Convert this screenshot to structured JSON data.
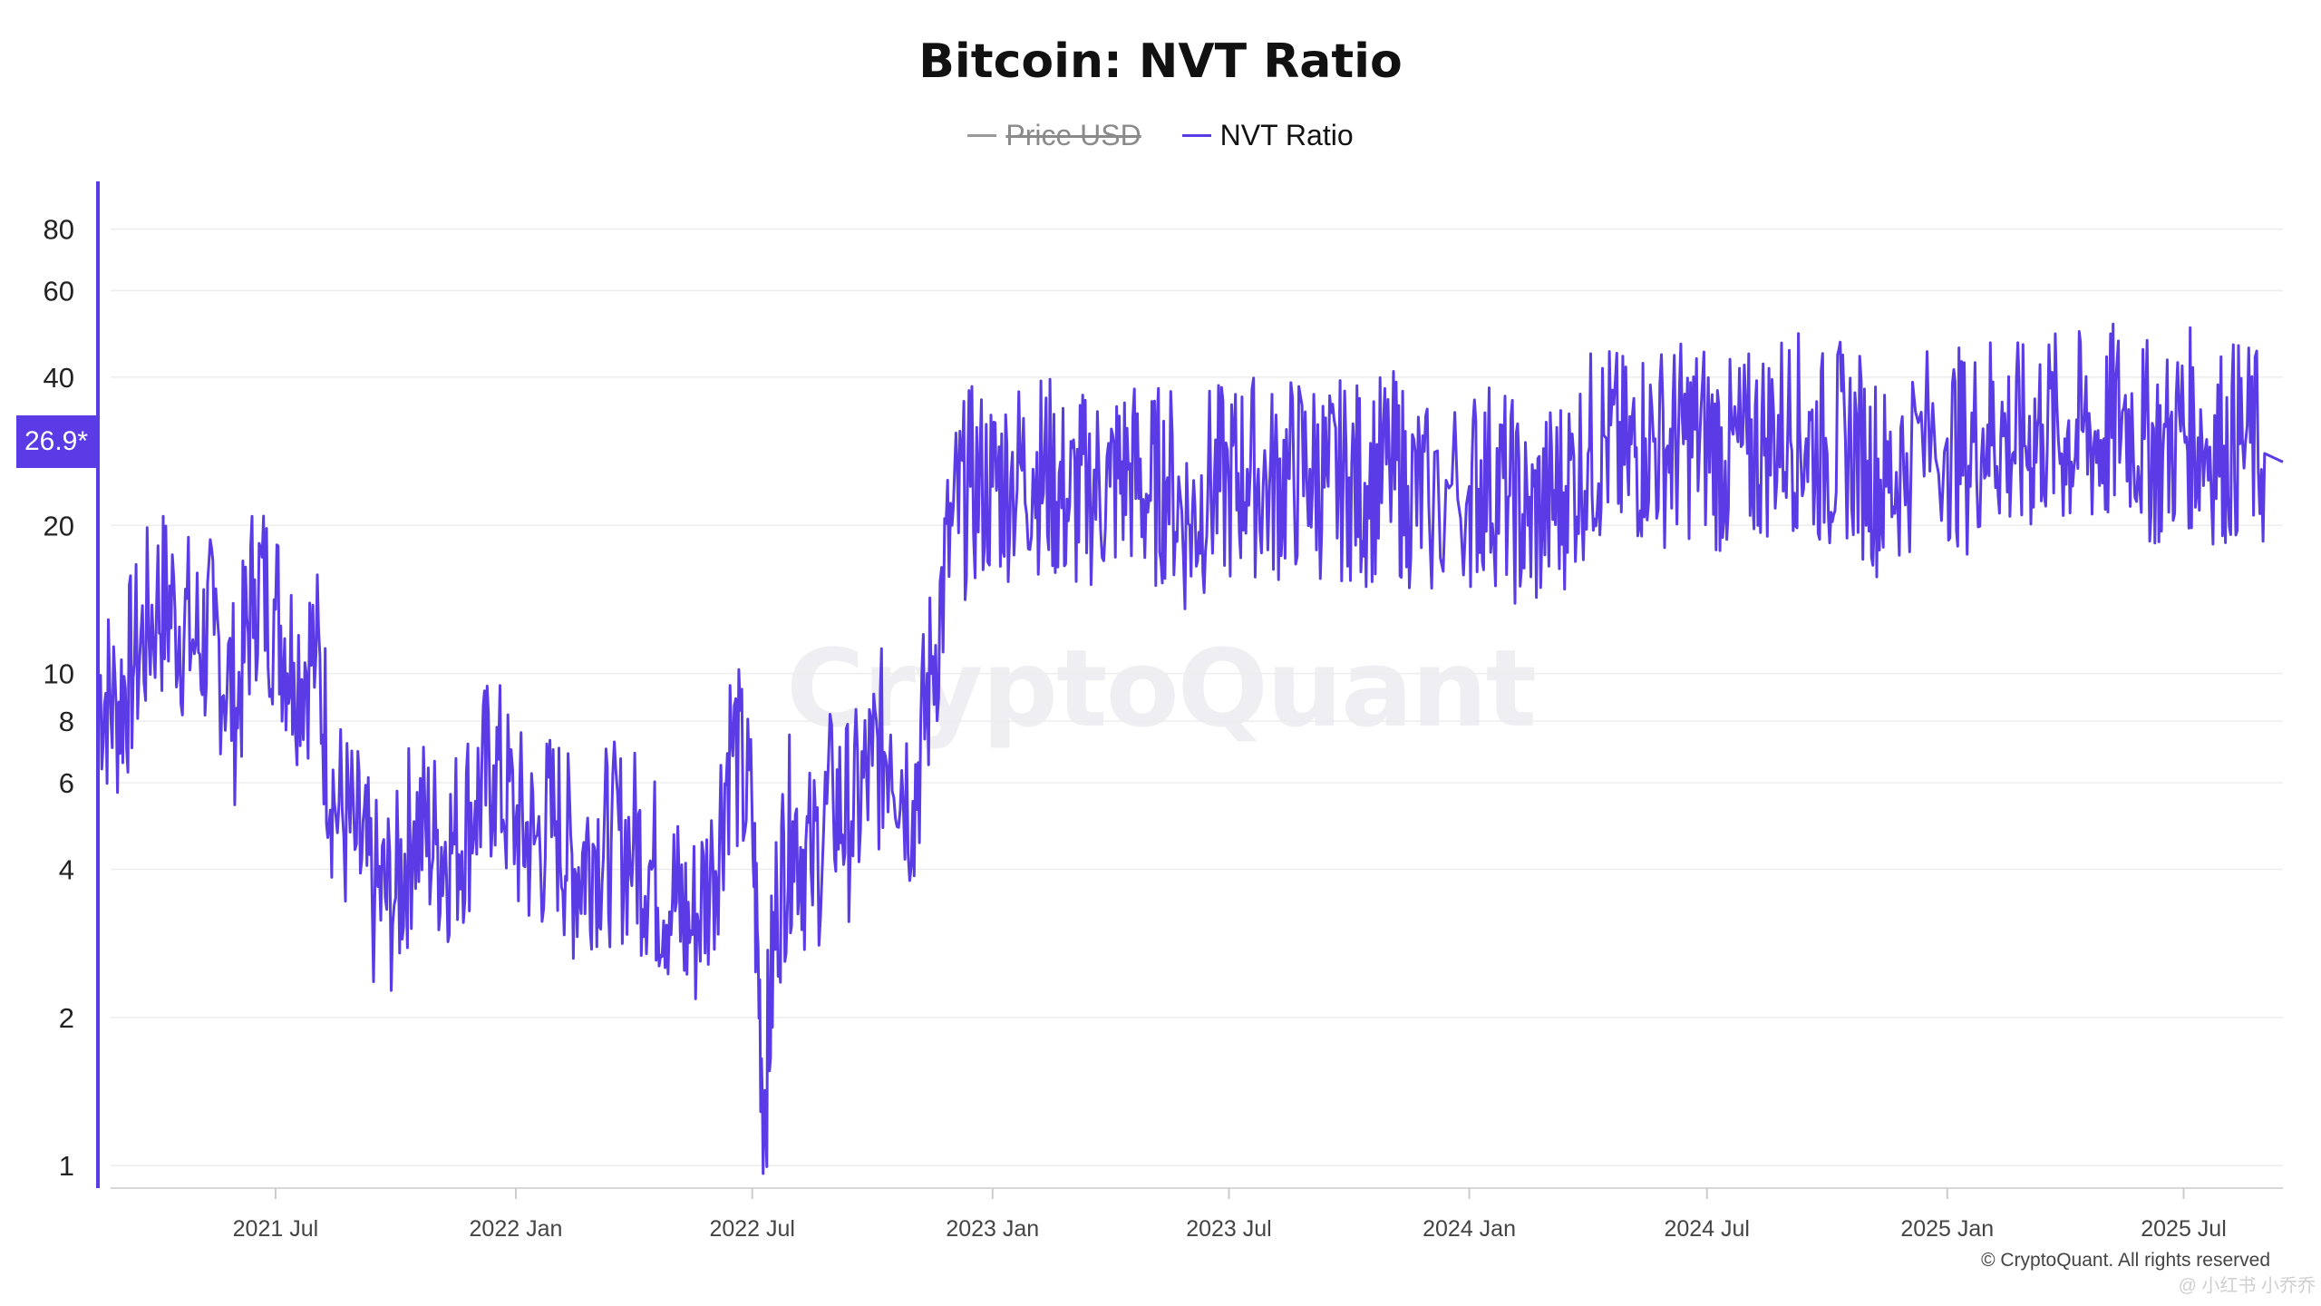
{
  "chart": {
    "title": "Bitcoin: NVT Ratio",
    "legend": [
      {
        "label": "Price USD",
        "color": "#9a9a9a",
        "enabled": false
      },
      {
        "label": "NVT Ratio",
        "color": "#5b3be6",
        "enabled": true
      }
    ],
    "watermark": "CryptoQuant",
    "current_value_label": "26.9*",
    "copyright": "© CryptoQuant. All rights reserved",
    "social_mark": "@ 小红书 小乔乔"
  },
  "chart_data": {
    "type": "line",
    "title": "Bitcoin: NVT Ratio",
    "xlabel": "",
    "ylabel": "",
    "y_scale": "log",
    "ylim": [
      0.9,
      100
    ],
    "y_ticks": [
      1,
      2,
      4,
      6,
      8,
      10,
      20,
      40,
      60,
      80
    ],
    "y_tick_labels": [
      "1",
      "2",
      "4",
      "6",
      "8",
      "10",
      "20",
      "40",
      "60",
      "80"
    ],
    "x_range": [
      "2021-02-15",
      "2025-09-15"
    ],
    "x_ticks": [
      "2021-07-01",
      "2022-01-01",
      "2022-07-01",
      "2023-01-01",
      "2023-07-01",
      "2024-01-01",
      "2024-07-01",
      "2025-01-01",
      "2025-07-01"
    ],
    "x_tick_labels": [
      "2021 Jul",
      "2022 Jan",
      "2022 Jul",
      "2023 Jan",
      "2023 Jul",
      "2024 Jan",
      "2024 Jul",
      "2025 Jan",
      "2025 Jul"
    ],
    "grid": {
      "horizontal": true,
      "vertical": false
    },
    "legend_placement": "top-center",
    "current_value": 26.9,
    "series": [
      {
        "name": "Price USD",
        "color": "#9a9a9a",
        "visible": false,
        "points": []
      },
      {
        "name": "NVT Ratio",
        "color": "#5b3be6",
        "visible": true,
        "points": [
          [
            "2021-02-15",
            9.5
          ],
          [
            "2021-03-01",
            8.5
          ],
          [
            "2021-03-15",
            10.5
          ],
          [
            "2021-04-01",
            14.0
          ],
          [
            "2021-04-15",
            13.5
          ],
          [
            "2021-05-01",
            11.5
          ],
          [
            "2021-05-15",
            12.0
          ],
          [
            "2021-06-01",
            8.5
          ],
          [
            "2021-06-15",
            15.5
          ],
          [
            "2021-07-01",
            13.5
          ],
          [
            "2021-07-15",
            10.5
          ],
          [
            "2021-08-01",
            11.0
          ],
          [
            "2021-08-15",
            5.5
          ],
          [
            "2021-09-01",
            4.5
          ],
          [
            "2021-09-15",
            3.5
          ],
          [
            "2021-10-01",
            3.5
          ],
          [
            "2021-10-15",
            5.0
          ],
          [
            "2021-11-01",
            4.5
          ],
          [
            "2021-11-15",
            4.5
          ],
          [
            "2021-12-01",
            5.5
          ],
          [
            "2021-12-15",
            6.5
          ],
          [
            "2022-01-01",
            5.0
          ],
          [
            "2022-01-15",
            4.5
          ],
          [
            "2022-02-01",
            5.0
          ],
          [
            "2022-02-15",
            4.0
          ],
          [
            "2022-03-01",
            4.5
          ],
          [
            "2022-03-15",
            4.5
          ],
          [
            "2022-04-01",
            4.5
          ],
          [
            "2022-04-15",
            4.0
          ],
          [
            "2022-05-01",
            3.5
          ],
          [
            "2022-05-15",
            3.0
          ],
          [
            "2022-06-01",
            4.0
          ],
          [
            "2022-06-15",
            7.5
          ],
          [
            "2022-07-01",
            5.0
          ],
          [
            "2022-07-10",
            1.3
          ],
          [
            "2022-07-20",
            3.5
          ],
          [
            "2022-08-01",
            5.0
          ],
          [
            "2022-08-15",
            4.0
          ],
          [
            "2022-09-01",
            5.5
          ],
          [
            "2022-09-15",
            5.0
          ],
          [
            "2022-10-01",
            6.5
          ],
          [
            "2022-10-15",
            7.5
          ],
          [
            "2022-11-01",
            5.5
          ],
          [
            "2022-11-15",
            10.0
          ],
          [
            "2022-12-01",
            20.0
          ],
          [
            "2022-12-15",
            24.0
          ],
          [
            "2023-01-01",
            24.0
          ],
          [
            "2023-01-15",
            25.0
          ],
          [
            "2023-02-01",
            26.0
          ],
          [
            "2023-02-15",
            25.0
          ],
          [
            "2023-03-01",
            22.0
          ],
          [
            "2023-03-15",
            24.0
          ],
          [
            "2023-04-01",
            24.0
          ],
          [
            "2023-04-15",
            26.0
          ],
          [
            "2023-05-01",
            23.0
          ],
          [
            "2023-05-15",
            25.0
          ],
          [
            "2023-06-01",
            20.0
          ],
          [
            "2023-06-15",
            24.0
          ],
          [
            "2023-07-01",
            24.0
          ],
          [
            "2023-07-15",
            26.0
          ],
          [
            "2023-08-01",
            24.0
          ],
          [
            "2023-08-15",
            25.0
          ],
          [
            "2023-09-01",
            26.0
          ],
          [
            "2023-09-15",
            24.0
          ],
          [
            "2023-10-01",
            25.0
          ],
          [
            "2023-10-15",
            24.0
          ],
          [
            "2023-11-01",
            26.0
          ],
          [
            "2023-11-15",
            24.0
          ],
          [
            "2023-12-01",
            22.0
          ],
          [
            "2024-01-01",
            24.0
          ],
          [
            "2024-01-15",
            25.0
          ],
          [
            "2024-02-01",
            23.0
          ],
          [
            "2024-02-15",
            20.0
          ],
          [
            "2024-03-01",
            22.0
          ],
          [
            "2024-03-15",
            24.0
          ],
          [
            "2024-04-01",
            28.0
          ],
          [
            "2024-04-15",
            30.0
          ],
          [
            "2024-05-01",
            27.0
          ],
          [
            "2024-05-15",
            30.0
          ],
          [
            "2024-06-01",
            29.0
          ],
          [
            "2024-06-15",
            30.0
          ],
          [
            "2024-07-01",
            30.0
          ],
          [
            "2024-07-15",
            27.0
          ],
          [
            "2024-08-01",
            28.0
          ],
          [
            "2024-08-15",
            30.0
          ],
          [
            "2024-09-01",
            32.0
          ],
          [
            "2024-09-15",
            30.0
          ],
          [
            "2024-10-01",
            28.0
          ],
          [
            "2024-10-15",
            30.0
          ],
          [
            "2024-11-01",
            27.0
          ],
          [
            "2024-11-15",
            24.0
          ],
          [
            "2024-12-01",
            28.0
          ],
          [
            "2025-01-01",
            30.0
          ],
          [
            "2025-01-15",
            28.0
          ],
          [
            "2025-02-01",
            32.0
          ],
          [
            "2025-02-15",
            30.0
          ],
          [
            "2025-03-01",
            29.0
          ],
          [
            "2025-03-15",
            32.0
          ],
          [
            "2025-04-01",
            30.0
          ],
          [
            "2025-04-15",
            31.0
          ],
          [
            "2025-05-01",
            30.0
          ],
          [
            "2025-05-15",
            34.0
          ],
          [
            "2025-06-01",
            30.0
          ],
          [
            "2025-06-15",
            28.0
          ],
          [
            "2025-07-01",
            32.0
          ],
          [
            "2025-07-15",
            30.0
          ],
          [
            "2025-08-01",
            29.0
          ],
          [
            "2025-08-15",
            30.0
          ],
          [
            "2025-09-01",
            28.0
          ],
          [
            "2025-09-15",
            26.9
          ]
        ]
      }
    ]
  }
}
